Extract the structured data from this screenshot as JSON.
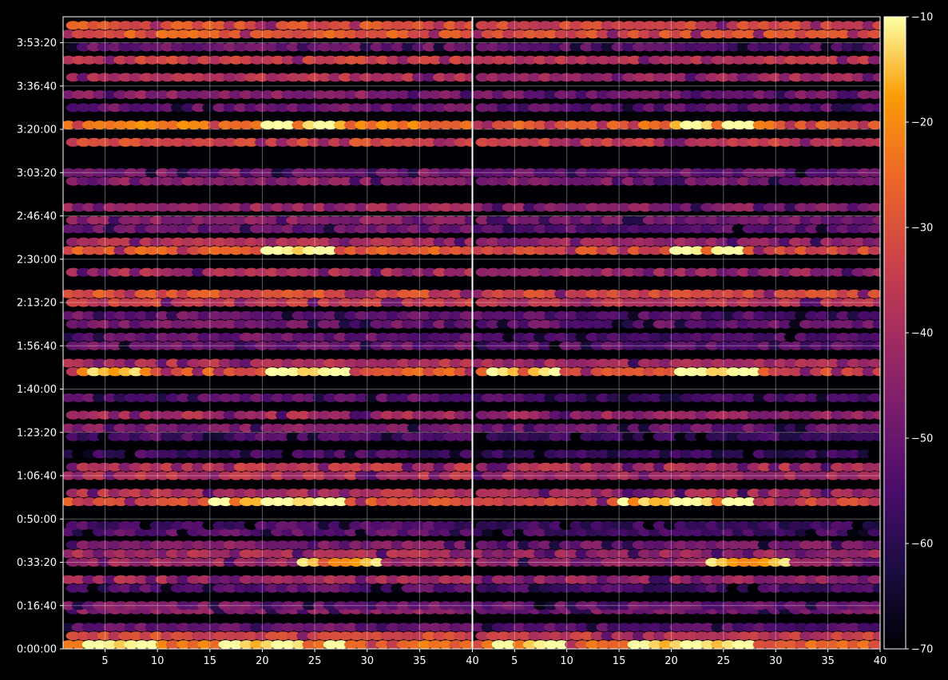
{
  "chart_data": {
    "type": "heatmap",
    "style": "dark background, hexagonal cells arranged in horizontal bands",
    "panels": [
      {
        "name": "",
        "xlim": [
          1,
          40
        ],
        "xticks": [
          5,
          10,
          15,
          20,
          25,
          30,
          35
        ],
        "xtick_labels": [
          "5",
          "10",
          "15",
          "20",
          "25",
          "30",
          "35"
        ]
      },
      {
        "name": "",
        "xlim": [
          1,
          40
        ],
        "xticks": [
          5,
          10,
          15,
          20,
          25,
          30,
          35,
          40
        ],
        "xtick_labels": [
          "5",
          "10",
          "15",
          "20",
          "25",
          "30",
          "35",
          "40"
        ]
      }
    ],
    "shared_divider_label": "40",
    "y_axis": {
      "kind": "time",
      "range_seconds": [
        0,
        14600
      ],
      "ticks_seconds": [
        0,
        1000,
        2000,
        3000,
        4000,
        5000,
        6000,
        7000,
        8000,
        9000,
        10000,
        11000,
        12000,
        13000,
        14000
      ],
      "tick_labels": [
        "0:00:00",
        "0:16:40",
        "0:33:20",
        "0:50:00",
        "1:06:40",
        "1:23:20",
        "1:40:00",
        "1:56:40",
        "2:13:20",
        "2:30:00",
        "2:46:40",
        "3:03:20",
        "3:20:00",
        "3:36:40",
        "3:53:20"
      ]
    },
    "colorbar": {
      "colormap": "inferno",
      "range": [
        -70,
        -10
      ],
      "ticks": [
        -10,
        -20,
        -30,
        -40,
        -50,
        -60,
        -70
      ],
      "tick_labels": [
        "−10",
        "−20",
        "−30",
        "−40",
        "−50",
        "−60",
        "−70"
      ]
    },
    "grid": true,
    "bands": [
      {
        "t": 100,
        "level": -24,
        "peaks": [
          [
            6.5,
            -14
          ],
          [
            19.5,
            -16
          ],
          [
            24.5,
            -15
          ]
        ]
      },
      {
        "t": 300,
        "level": -32
      },
      {
        "t": 500,
        "level": -50
      },
      {
        "t": 900,
        "level": -45
      },
      {
        "t": 1000,
        "level": -48
      },
      {
        "t": 1400,
        "level": -53
      },
      {
        "t": 1600,
        "level": -40
      },
      {
        "t": 2000,
        "level": -42,
        "peaks": [
          [
            27,
            -22
          ]
        ]
      },
      {
        "t": 2200,
        "level": -40
      },
      {
        "t": 2400,
        "level": -45
      },
      {
        "t": 2700,
        "level": -52
      },
      {
        "t": 2850,
        "level": -55
      },
      {
        "t": 3400,
        "level": -30,
        "peaks": [
          [
            19,
            -17
          ],
          [
            24,
            -14
          ]
        ]
      },
      {
        "t": 3600,
        "level": -38
      },
      {
        "t": 4000,
        "level": -38
      },
      {
        "t": 4200,
        "level": -36
      },
      {
        "t": 4500,
        "level": -56
      },
      {
        "t": 4900,
        "level": -55
      },
      {
        "t": 5100,
        "level": -47
      },
      {
        "t": 5400,
        "level": -40
      },
      {
        "t": 5800,
        "level": -52
      },
      {
        "t": 6400,
        "level": -28,
        "peaks": [
          [
            5.5,
            -18
          ],
          [
            24,
            -15
          ]
        ]
      },
      {
        "t": 6600,
        "level": -38
      },
      {
        "t": 7000,
        "level": -50
      },
      {
        "t": 7200,
        "level": -50
      },
      {
        "t": 7500,
        "level": -48
      },
      {
        "t": 7700,
        "level": -50
      },
      {
        "t": 8000,
        "level": -35
      },
      {
        "t": 8200,
        "level": -30
      },
      {
        "t": 8700,
        "level": -40
      },
      {
        "t": 9200,
        "level": -28,
        "peaks": [
          [
            23.5,
            -14
          ]
        ]
      },
      {
        "t": 9400,
        "level": -40
      },
      {
        "t": 9700,
        "level": -50
      },
      {
        "t": 9900,
        "level": -45
      },
      {
        "t": 10200,
        "level": -42
      },
      {
        "t": 10800,
        "level": -45
      },
      {
        "t": 11000,
        "level": -48
      },
      {
        "t": 11700,
        "level": -32
      },
      {
        "t": 12100,
        "level": -23,
        "peaks": [
          [
            24,
            -14
          ]
        ]
      },
      {
        "t": 12500,
        "level": -50
      },
      {
        "t": 12800,
        "level": -45
      },
      {
        "t": 13200,
        "level": -38
      },
      {
        "t": 13600,
        "level": -34
      },
      {
        "t": 13900,
        "level": -50
      },
      {
        "t": 14200,
        "level": -28
      },
      {
        "t": 14400,
        "level": -30
      }
    ]
  }
}
